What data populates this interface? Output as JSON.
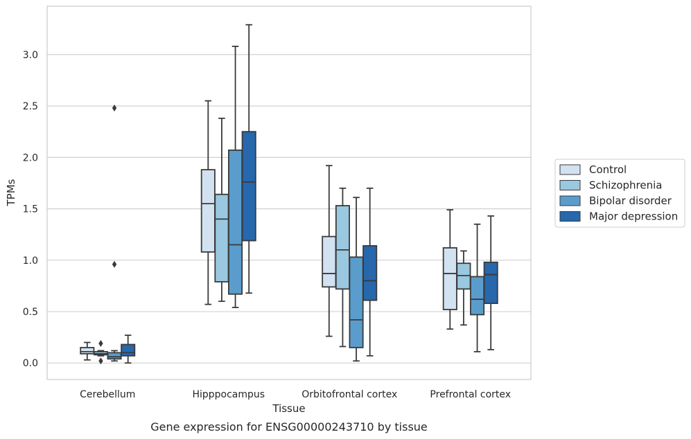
{
  "chart_data": {
    "type": "box",
    "xlabel": "Tissue",
    "ylabel": "TPMs",
    "caption": "Gene expression for ENSG00000243710 by tissue",
    "ylim": [
      -0.16,
      3.47
    ],
    "yticks": [
      "0.0",
      "0.5",
      "1.0",
      "1.5",
      "2.0",
      "2.5",
      "3.0"
    ],
    "grid": true,
    "legend_position": "right-outside",
    "categories": [
      "Cerebellum",
      "Hipppocampus",
      "Orbitofrontal cortex",
      "Prefrontal cortex"
    ],
    "series": [
      {
        "name": "Control",
        "color": "#d2e2f1",
        "boxes": [
          {
            "whislo": 0.03,
            "q1": 0.09,
            "med": 0.11,
            "q3": 0.15,
            "whishi": 0.2,
            "fliers": []
          },
          {
            "whislo": 0.57,
            "q1": 1.08,
            "med": 1.55,
            "q3": 1.88,
            "whishi": 2.55,
            "fliers": []
          },
          {
            "whislo": 0.26,
            "q1": 0.74,
            "med": 0.87,
            "q3": 1.23,
            "whishi": 1.92,
            "fliers": []
          },
          {
            "whislo": 0.33,
            "q1": 0.52,
            "med": 0.87,
            "q3": 1.12,
            "whishi": 1.49,
            "fliers": []
          }
        ]
      },
      {
        "name": "Schizophrenia",
        "color": "#9ac8e0",
        "boxes": [
          {
            "whislo": 0.07,
            "q1": 0.08,
            "med": 0.09,
            "q3": 0.11,
            "whishi": 0.12,
            "fliers": [
              0.19,
              0.02
            ]
          },
          {
            "whislo": 0.6,
            "q1": 0.79,
            "med": 1.4,
            "q3": 1.64,
            "whishi": 2.38,
            "fliers": []
          },
          {
            "whislo": 0.16,
            "q1": 0.72,
            "med": 1.1,
            "q3": 1.53,
            "whishi": 1.7,
            "fliers": []
          },
          {
            "whislo": 0.37,
            "q1": 0.72,
            "med": 0.85,
            "q3": 0.97,
            "whishi": 1.09,
            "fliers": []
          }
        ]
      },
      {
        "name": "Bipolar disorder",
        "color": "#5a9dcc",
        "boxes": [
          {
            "whislo": 0.02,
            "q1": 0.04,
            "med": 0.06,
            "q3": 0.1,
            "whishi": 0.12,
            "fliers": [
              2.48,
              0.96
            ]
          },
          {
            "whislo": 0.54,
            "q1": 0.67,
            "med": 1.15,
            "q3": 2.07,
            "whishi": 3.08,
            "fliers": []
          },
          {
            "whislo": 0.02,
            "q1": 0.15,
            "med": 0.42,
            "q3": 1.03,
            "whishi": 1.61,
            "fliers": []
          },
          {
            "whislo": 0.11,
            "q1": 0.47,
            "med": 0.62,
            "q3": 0.84,
            "whishi": 1.35,
            "fliers": []
          }
        ]
      },
      {
        "name": "Major depression",
        "color": "#2767ac",
        "boxes": [
          {
            "whislo": 0.0,
            "q1": 0.07,
            "med": 0.1,
            "q3": 0.18,
            "whishi": 0.27,
            "fliers": []
          },
          {
            "whislo": 0.68,
            "q1": 1.19,
            "med": 1.76,
            "q3": 2.25,
            "whishi": 3.29,
            "fliers": []
          },
          {
            "whislo": 0.07,
            "q1": 0.61,
            "med": 0.8,
            "q3": 1.14,
            "whishi": 1.7,
            "fliers": []
          },
          {
            "whislo": 0.13,
            "q1": 0.58,
            "med": 0.86,
            "q3": 0.98,
            "whishi": 1.43,
            "fliers": []
          }
        ]
      }
    ]
  }
}
